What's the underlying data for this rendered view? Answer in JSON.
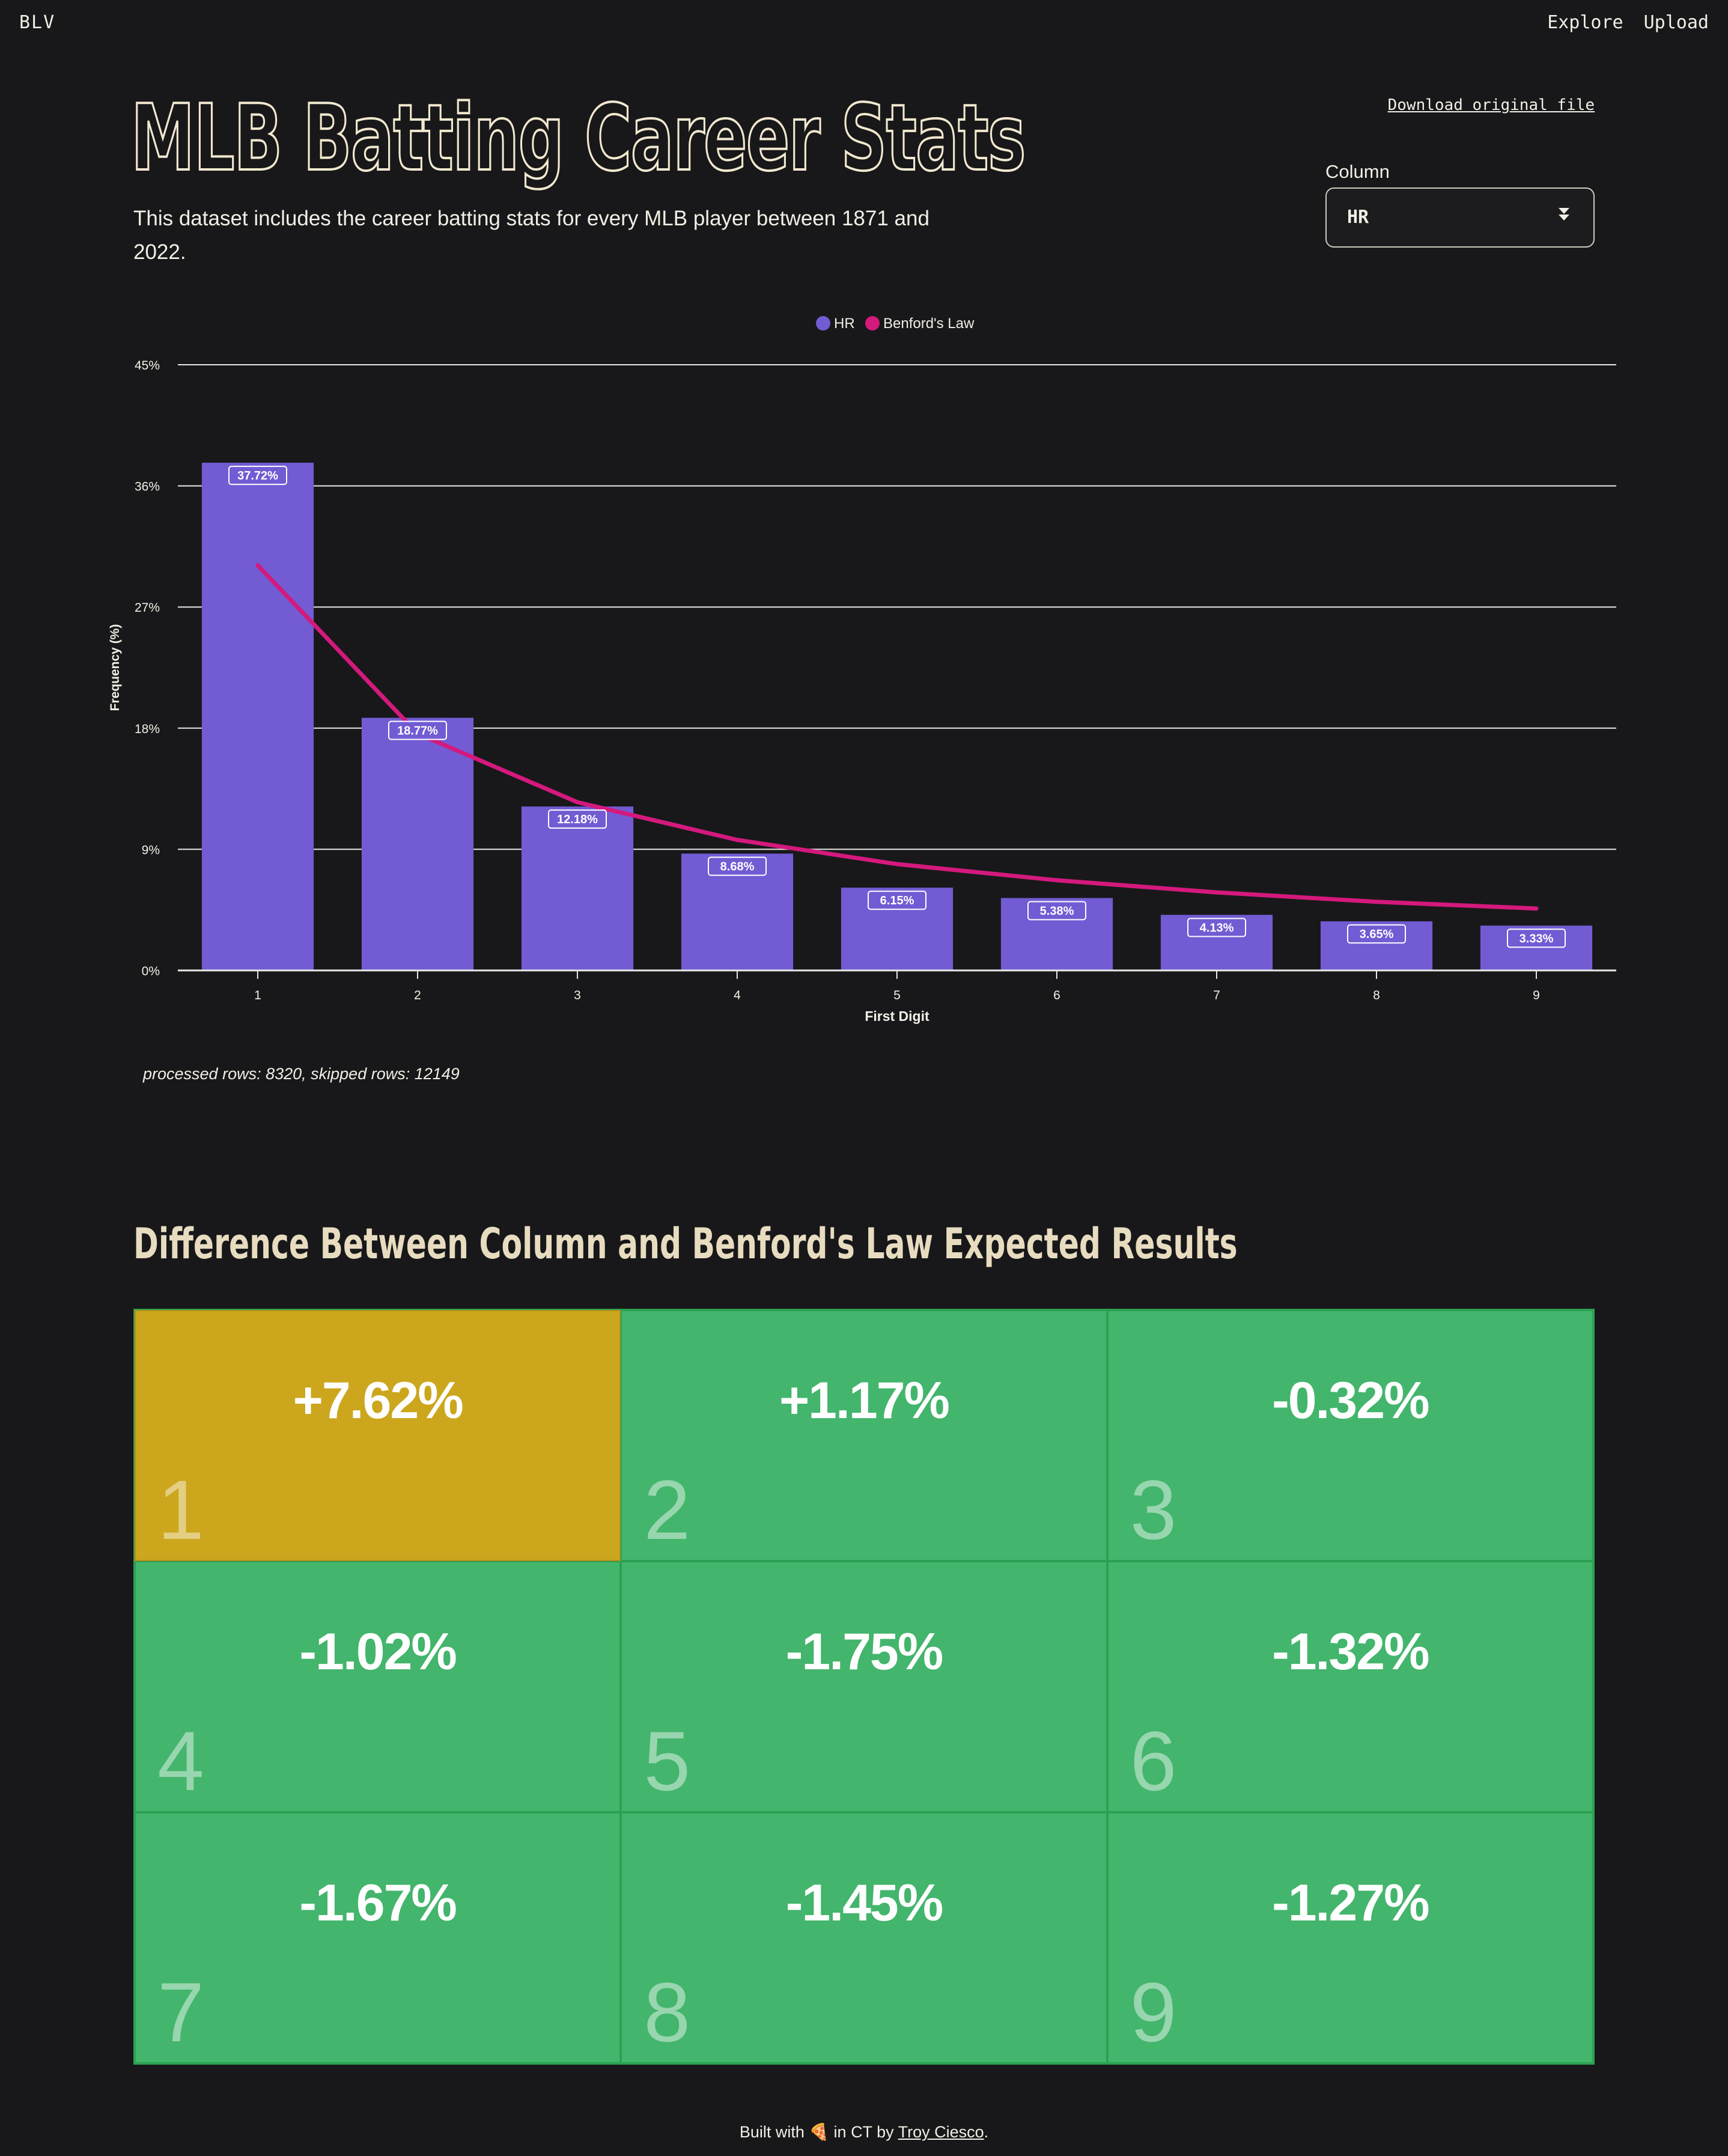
{
  "nav": {
    "brand": "BLV",
    "links": [
      "Explore",
      "Upload"
    ]
  },
  "header": {
    "title": "MLB Batting Career Stats",
    "subtitle": "This dataset includes the career batting stats for every MLB player between 1871 and 2022.",
    "download_label": "Download original file"
  },
  "column_select": {
    "label": "Column",
    "value": "HR",
    "caret_icon": "double-caret-down-icon"
  },
  "chart_data": {
    "type": "bar",
    "title": "",
    "xlabel": "First Digit",
    "ylabel": "Frequency (%)",
    "ylim": [
      0,
      45
    ],
    "yticks": [
      "0%",
      "9%",
      "18%",
      "27%",
      "36%",
      "45%"
    ],
    "ytick_values": [
      0,
      9,
      18,
      27,
      36,
      45
    ],
    "categories": [
      "1",
      "2",
      "3",
      "4",
      "5",
      "6",
      "7",
      "8",
      "9"
    ],
    "legend_position": "top-center",
    "grid": true,
    "series": [
      {
        "name": "HR",
        "type": "bar",
        "color": "#735bd3",
        "values": [
          37.72,
          18.77,
          12.18,
          8.68,
          6.15,
          5.38,
          4.13,
          3.65,
          3.33
        ],
        "labels": [
          "37.72%",
          "18.77%",
          "12.18%",
          "8.68%",
          "6.15%",
          "5.38%",
          "4.13%",
          "3.65%",
          "3.33%"
        ]
      },
      {
        "name": "Benford's Law",
        "type": "line",
        "color": "#d4197d",
        "values": [
          30.1,
          17.6,
          12.5,
          9.7,
          7.9,
          6.7,
          5.8,
          5.1,
          4.6
        ]
      }
    ]
  },
  "processed_text": "processed rows: 8320, skipped rows: 12149",
  "differences": {
    "title": "Difference Between Column and Benford's Law Expected Results",
    "cells": [
      {
        "digit": "1",
        "value": "+7.62%",
        "status": "warning",
        "color": "#cca61d"
      },
      {
        "digit": "2",
        "value": "+1.17%",
        "status": "ok",
        "color": "#43b56c"
      },
      {
        "digit": "3",
        "value": "-0.32%",
        "status": "ok",
        "color": "#43b56c"
      },
      {
        "digit": "4",
        "value": "-1.02%",
        "status": "ok",
        "color": "#43b56c"
      },
      {
        "digit": "5",
        "value": "-1.75%",
        "status": "ok",
        "color": "#43b56c"
      },
      {
        "digit": "6",
        "value": "-1.32%",
        "status": "ok",
        "color": "#43b56c"
      },
      {
        "digit": "7",
        "value": "-1.67%",
        "status": "ok",
        "color": "#43b56c"
      },
      {
        "digit": "8",
        "value": "-1.45%",
        "status": "ok",
        "color": "#43b56c"
      },
      {
        "digit": "9",
        "value": "-1.27%",
        "status": "ok",
        "color": "#43b56c"
      }
    ]
  },
  "footer": {
    "prefix": "Built with",
    "emoji": "🍕",
    "middle": "in CT by",
    "author": "Troy Ciesco",
    "suffix": "."
  }
}
